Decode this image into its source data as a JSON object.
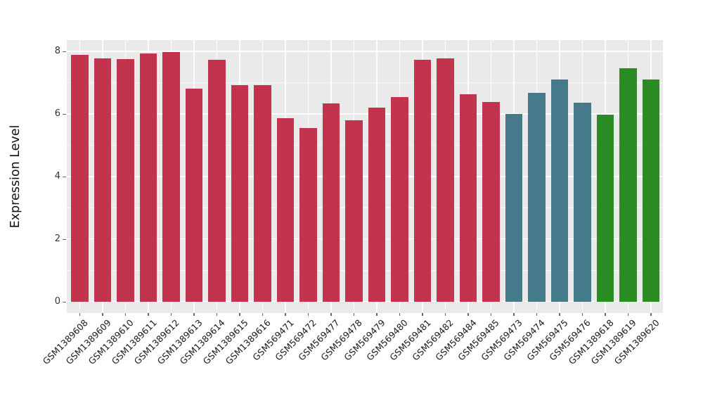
{
  "figure": {
    "background": "#FFFFFF",
    "panel_background": "#EAEAEA"
  },
  "chart_data": {
    "type": "bar",
    "title": "",
    "xlabel": "",
    "ylabel": "Expression Level",
    "ylim": [
      0,
      8.4
    ],
    "yticks": [
      0,
      2,
      4,
      6,
      8
    ],
    "ytick_labels": [
      "0",
      "2",
      "4",
      "6",
      "8"
    ],
    "minor_gridlines_at": [
      1,
      3,
      5,
      7
    ],
    "grid": {
      "panel": "#EAEAEA",
      "gridline_color": "#FFFFFF",
      "vertical_gridlines_at_bar_centers": true
    },
    "legend": "none",
    "x_tick_rotation_deg": 45,
    "categories": [
      "GSM1389608",
      "GSM1389609",
      "GSM1389610",
      "GSM1389611",
      "GSM1389612",
      "GSM1389613",
      "GSM1389614",
      "GSM1389615",
      "GSM1389616",
      "GSM569471",
      "GSM569472",
      "GSM569477",
      "GSM569478",
      "GSM569479",
      "GSM569480",
      "GSM569481",
      "GSM569482",
      "GSM569484",
      "GSM569485",
      "GSM569473",
      "GSM569474",
      "GSM569475",
      "GSM569476",
      "GSM1389618",
      "GSM1389619",
      "GSM1389620"
    ],
    "values": [
      7.89,
      7.78,
      7.75,
      7.94,
      7.97,
      6.8,
      7.74,
      6.91,
      6.93,
      5.87,
      5.54,
      6.33,
      5.8,
      6.2,
      6.54,
      7.72,
      7.77,
      6.63,
      6.39,
      6.0,
      6.67,
      7.1,
      6.36,
      5.97,
      7.47,
      7.1
    ],
    "colors": [
      "#C2334E",
      "#C2334E",
      "#C2334E",
      "#C2334E",
      "#C2334E",
      "#C2334E",
      "#C2334E",
      "#C2334E",
      "#C2334E",
      "#C2334E",
      "#C2334E",
      "#C2334E",
      "#C2334E",
      "#C2334E",
      "#C2334E",
      "#C2334E",
      "#C2334E",
      "#C2334E",
      "#C2334E",
      "#457A8B",
      "#457A8B",
      "#457A8B",
      "#457A8B",
      "#2B8C23",
      "#2B8C23",
      "#2B8C23"
    ],
    "color_groups": {
      "crimson": "#C2334E",
      "teal": "#457A8B",
      "green": "#2B8C23"
    }
  }
}
